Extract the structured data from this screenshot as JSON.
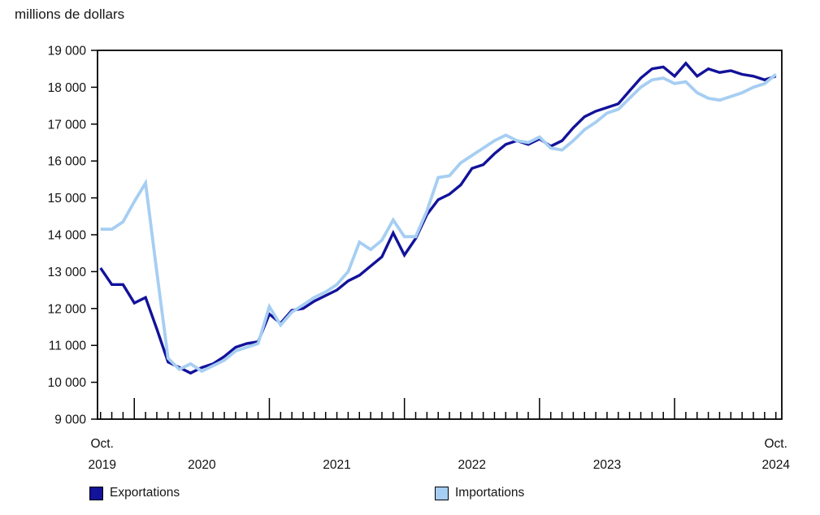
{
  "chart_data": {
    "type": "line",
    "title": "millions de dollars",
    "ylim": [
      9000,
      19000
    ],
    "ytick_step": 1000,
    "ytick_labels": [
      "19 000",
      "18 000",
      "17 000",
      "16 000",
      "15 000",
      "14 000",
      "13 000",
      "12 000",
      "11 000",
      "10 000",
      "9 000"
    ],
    "x_axis": {
      "start_label": {
        "line1": "Oct.",
        "line2": "2019"
      },
      "end_label": {
        "line1": "Oct.",
        "line2": "2024"
      },
      "year_labels": [
        "2020",
        "2021",
        "2022",
        "2023"
      ],
      "n_points": 61,
      "minor_ticks": "monthly",
      "major_tick_indices": [
        3,
        15,
        27,
        39,
        51
      ],
      "year_label_center_indices": [
        9,
        21,
        33,
        45
      ]
    },
    "grid": false,
    "legend_position": "bottom",
    "colors": {
      "exportations": "#12129a",
      "importations": "#a6cef2"
    },
    "series": [
      {
        "name": "Exportations",
        "color": "#12129a",
        "values": [
          13100,
          12650,
          12650,
          12150,
          12300,
          11450,
          10550,
          10400,
          10250,
          10400,
          10500,
          10700,
          10950,
          11050,
          11100,
          11850,
          11600,
          11950,
          12000,
          12200,
          12350,
          12500,
          12750,
          12900,
          13150,
          13400,
          14050,
          13450,
          13900,
          14550,
          14950,
          15100,
          15350,
          15800,
          15900,
          16200,
          16450,
          16550,
          16450,
          16600,
          16400,
          16550,
          16900,
          17200,
          17350,
          17450,
          17550,
          17900,
          18250,
          18500,
          18550,
          18300,
          18650,
          18300,
          18500,
          18400,
          18450,
          18350,
          18300,
          18200,
          18300
        ]
      },
      {
        "name": "Importations",
        "color": "#a6cef2",
        "values": [
          14150,
          14150,
          14350,
          14900,
          15400,
          13000,
          10650,
          10350,
          10500,
          10300,
          10450,
          10600,
          10850,
          10950,
          11050,
          12050,
          11550,
          11900,
          12100,
          12300,
          12450,
          12650,
          13000,
          13800,
          13600,
          13850,
          14400,
          13950,
          13950,
          14650,
          15550,
          15600,
          15950,
          16150,
          16350,
          16550,
          16700,
          16550,
          16500,
          16650,
          16350,
          16300,
          16550,
          16850,
          17050,
          17300,
          17400,
          17700,
          18000,
          18200,
          18250,
          18100,
          18150,
          17850,
          17700,
          17650,
          17750,
          17850,
          18000,
          18100,
          18350
        ]
      }
    ]
  },
  "legend": {
    "exportations_label": "Exportations",
    "importations_label": "Importations"
  }
}
